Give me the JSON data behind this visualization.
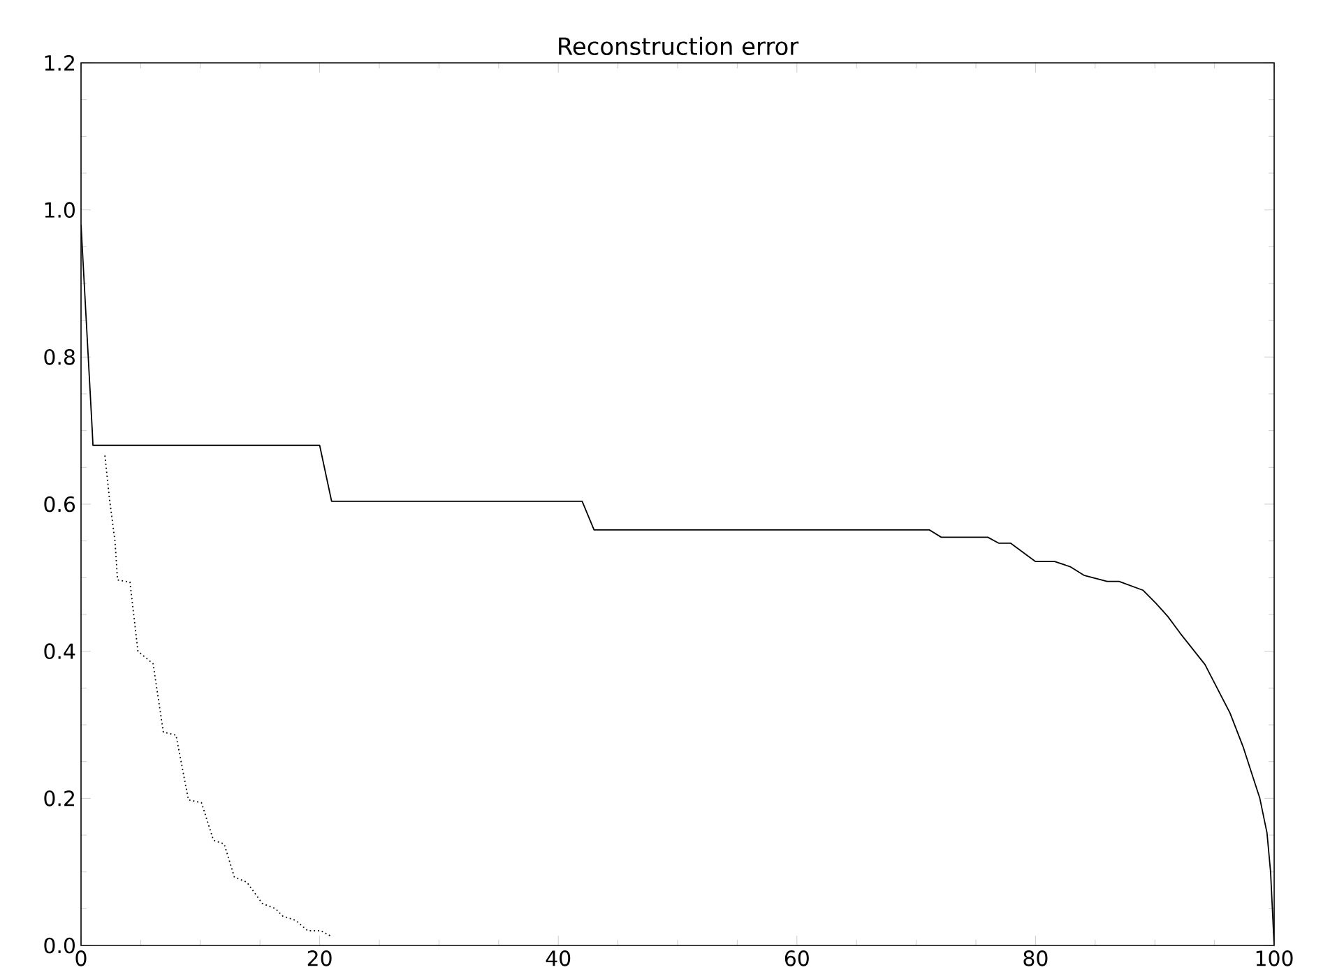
{
  "chart_data": {
    "type": "line",
    "title": "Reconstruction error",
    "xlim": [
      0,
      100
    ],
    "ylim": [
      0,
      1.2
    ],
    "xticks": [
      0,
      20,
      40,
      60,
      80,
      100
    ],
    "yticks": [
      {
        "value": 0,
        "label": "0.0"
      },
      0.2,
      0.4,
      0.6,
      0.8,
      {
        "value": 1,
        "label": "1.0"
      },
      1.2
    ],
    "marker": "none",
    "series": [
      {
        "color": "#000000",
        "line_style": "solid",
        "x": [
          0,
          0.94,
          1.0,
          20,
          21.0,
          42,
          43,
          71.1,
          72.1,
          76,
          76.9,
          77.9,
          80,
          81.6,
          82.9,
          84.1,
          86,
          87,
          89,
          90.1,
          91.1,
          92.1,
          94.2,
          96.3,
          97.4,
          98.2,
          98.8,
          99.4,
          99.7,
          99.85,
          100
        ],
        "values": [
          0.98,
          0.7,
          0.68,
          0.68,
          0.604,
          0.604,
          0.565,
          0.565,
          0.555,
          0.555,
          0.547,
          0.547,
          0.522,
          0.522,
          0.515,
          0.503,
          0.495,
          0.495,
          0.483,
          0.465,
          0.447,
          0.425,
          0.382,
          0.316,
          0.27,
          0.23,
          0.2,
          0.153,
          0.1,
          0.05,
          0
        ]
      },
      {
        "color": "#000000",
        "line_style": "dotted",
        "x": [
          2.0,
          2.4,
          2.85,
          3.06,
          4.1,
          4.77,
          6.04,
          6.9,
          7.96,
          9.0,
          10.1,
          11.1,
          12.0,
          12.85,
          13.9,
          15.2,
          16.3,
          16.9,
          18.0,
          19.0,
          20.1,
          20.9
        ],
        "values": [
          0.666,
          0.605,
          0.549,
          0.497,
          0.494,
          0.4,
          0.383,
          0.29,
          0.286,
          0.198,
          0.194,
          0.143,
          0.138,
          0.093,
          0.086,
          0.057,
          0.05,
          0.04,
          0.034,
          0.02,
          0.02,
          0.013
        ]
      }
    ]
  }
}
